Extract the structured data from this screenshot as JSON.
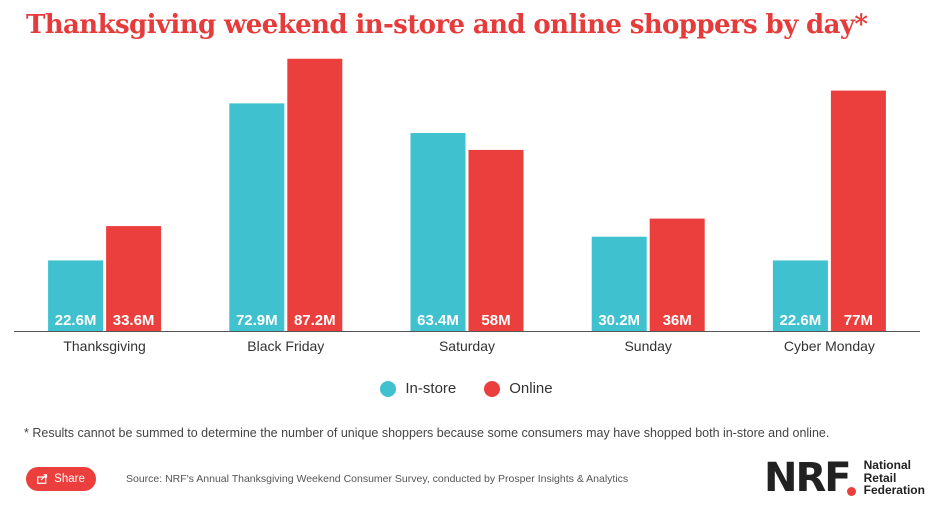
{
  "title": "Thanksgiving weekend in-store and online shoppers by day*",
  "colors": {
    "instore": "#3FC1CF",
    "online": "#EA3F3D",
    "title": "#E63B3B",
    "axis": "#555555"
  },
  "legend": {
    "instore": "In-store",
    "online": "Online"
  },
  "footnote": "* Results cannot be summed to determine the number of unique shoppers because some consumers may have shopped both in-store and online.",
  "share": {
    "label": "Share",
    "icon": "share-icon"
  },
  "source": "Source: NRF's Annual Thanksgiving Weekend Consumer Survey, conducted by Prosper Insights & Analytics",
  "logo": {
    "mark": "NRF",
    "line1": "National",
    "line2": "Retail",
    "line3": "Federation"
  },
  "chart_data": {
    "type": "bar",
    "title": "Thanksgiving weekend in-store and online shoppers by day*",
    "categories": [
      "Thanksgiving",
      "Black Friday",
      "Saturday",
      "Sunday",
      "Cyber Monday"
    ],
    "series": [
      {
        "name": "In-store",
        "values": [
          22.6,
          72.9,
          63.4,
          30.2,
          22.6
        ],
        "labels": [
          "22.6M",
          "72.9M",
          "63.4M",
          "30.2M",
          "22.6M"
        ]
      },
      {
        "name": "Online",
        "values": [
          33.6,
          87.2,
          58,
          36,
          77
        ],
        "labels": [
          "33.6M",
          "87.2M",
          "58M",
          "36M",
          "77M"
        ]
      }
    ],
    "unit": "M",
    "ylim": [
      0,
      90
    ],
    "grid": false,
    "legend_position": "bottom"
  }
}
